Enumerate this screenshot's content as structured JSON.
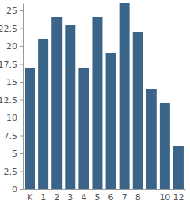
{
  "chart_data": {
    "type": "bar",
    "categories": [
      "K",
      "1",
      "2",
      "3",
      "4",
      "5",
      "6",
      "7",
      "8",
      null,
      "10",
      "12"
    ],
    "values": [
      17,
      21,
      24,
      23,
      17,
      24,
      19,
      26,
      22,
      14,
      12,
      6
    ],
    "color": "#3a6588",
    "ylim": [
      0,
      26
    ],
    "yticks": [
      0,
      2.5,
      5,
      7.5,
      10,
      12.5,
      15,
      17.5,
      20,
      22.5,
      25
    ],
    "grid": false
  }
}
